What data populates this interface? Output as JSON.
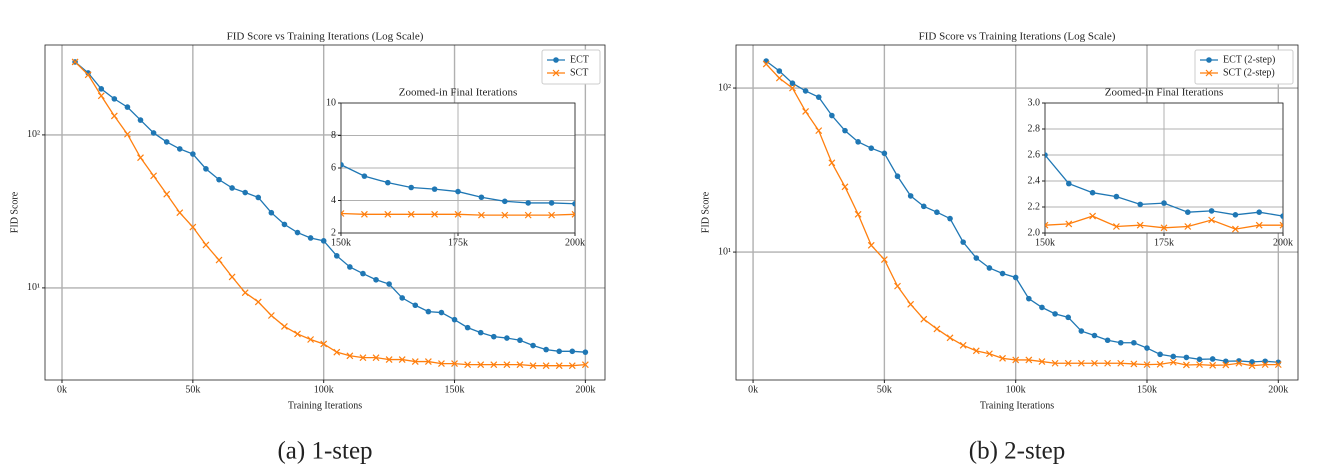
{
  "chart_data": [
    {
      "type": "line",
      "title": "FID Score vs Training Iterations (Log Scale)",
      "xlabel": "Training Iterations",
      "ylabel": "FID Score",
      "caption": "(a) 1-step",
      "x": [
        5000,
        10000,
        15000,
        20000,
        25000,
        30000,
        35000,
        40000,
        45000,
        50000,
        55000,
        60000,
        65000,
        70000,
        75000,
        80000,
        85000,
        90000,
        95000,
        100000,
        105000,
        110000,
        115000,
        120000,
        125000,
        130000,
        135000,
        140000,
        145000,
        150000,
        155000,
        160000,
        165000,
        170000,
        175000,
        180000,
        185000,
        190000,
        195000,
        200000
      ],
      "series": [
        {
          "name": "ECT",
          "color": "#1f77b4",
          "marker": "o",
          "values": [
            300,
            254,
            200,
            172,
            152,
            125,
            103,
            90,
            81,
            75,
            60,
            51,
            45,
            42,
            39,
            31,
            26,
            23,
            21.2,
            20.3,
            16.2,
            13.7,
            12.4,
            11.3,
            10.6,
            8.6,
            7.7,
            7.0,
            6.9,
            6.2,
            5.5,
            5.1,
            4.8,
            4.7,
            4.55,
            4.2,
            3.95,
            3.85,
            3.85,
            3.8
          ]
        },
        {
          "name": "SCT",
          "color": "#ff7f0e",
          "marker": "x",
          "values": [
            300,
            247,
            180,
            133,
            101,
            71,
            54,
            41,
            31,
            25,
            19.1,
            15.2,
            11.8,
            9.3,
            8.1,
            6.6,
            5.6,
            5.0,
            4.6,
            4.3,
            3.8,
            3.6,
            3.5,
            3.5,
            3.4,
            3.4,
            3.3,
            3.3,
            3.2,
            3.2,
            3.15,
            3.15,
            3.15,
            3.15,
            3.15,
            3.1,
            3.1,
            3.1,
            3.1,
            3.15
          ]
        }
      ],
      "xlim": [
        -6500,
        207500
      ],
      "ylim": [
        2.5,
        387
      ],
      "log_y": true,
      "grid": true,
      "legend": "upper right",
      "xticks": [
        {
          "value": 0,
          "label": "0k"
        },
        {
          "value": 50000,
          "label": "50k"
        },
        {
          "value": 100000,
          "label": "100k"
        },
        {
          "value": 150000,
          "label": "150k"
        },
        {
          "value": 200000,
          "label": "200k"
        }
      ],
      "yticks": [
        {
          "value": 10,
          "label": "10¹"
        },
        {
          "value": 100,
          "label": "10²"
        }
      ],
      "inset": {
        "title": "Zoomed-in Final Iterations",
        "x": [
          150000,
          155000,
          160000,
          165000,
          170000,
          175000,
          180000,
          185000,
          190000,
          195000,
          200000
        ],
        "series": [
          {
            "color": "#1f77b4",
            "marker": "o",
            "values": [
              6.2,
              5.5,
              5.1,
              4.8,
              4.7,
              4.55,
              4.2,
              3.95,
              3.85,
              3.85,
              3.8
            ]
          },
          {
            "color": "#ff7f0e",
            "marker": "x",
            "values": [
              3.2,
              3.15,
              3.15,
              3.15,
              3.15,
              3.15,
              3.1,
              3.1,
              3.1,
              3.1,
              3.15
            ]
          }
        ],
        "xlim": [
          150000,
          200000
        ],
        "ylim": [
          2,
          10
        ],
        "grid": true,
        "xticks": [
          {
            "value": 150000,
            "label": "150k"
          },
          {
            "value": 175000,
            "label": "175k"
          },
          {
            "value": 200000,
            "label": "200k"
          }
        ],
        "yticks": [
          2,
          4,
          6,
          8,
          10
        ]
      }
    },
    {
      "type": "line",
      "title": "FID Score vs Training Iterations (Log Scale)",
      "xlabel": "Training Iterations",
      "ylabel": "FID Score",
      "caption": "(b) 2-step",
      "x": [
        5000,
        10000,
        15000,
        20000,
        25000,
        30000,
        35000,
        40000,
        45000,
        50000,
        55000,
        60000,
        65000,
        70000,
        75000,
        80000,
        85000,
        90000,
        95000,
        100000,
        105000,
        110000,
        115000,
        120000,
        125000,
        130000,
        135000,
        140000,
        145000,
        150000,
        155000,
        160000,
        165000,
        170000,
        175000,
        180000,
        185000,
        190000,
        195000,
        200000
      ],
      "series": [
        {
          "name": "ECT (2-step)",
          "color": "#1f77b4",
          "marker": "o",
          "values": [
            146,
            127,
            107,
            96,
            88,
            68,
            55,
            47,
            43,
            40,
            29,
            22,
            19,
            17.5,
            16,
            11.5,
            9.2,
            8.0,
            7.4,
            7.0,
            5.2,
            4.6,
            4.2,
            4.0,
            3.3,
            3.1,
            2.9,
            2.8,
            2.8,
            2.6,
            2.38,
            2.31,
            2.28,
            2.22,
            2.23,
            2.16,
            2.17,
            2.14,
            2.16,
            2.13
          ]
        },
        {
          "name": "SCT (2-step)",
          "color": "#ff7f0e",
          "marker": "x",
          "values": [
            140,
            115,
            100,
            72,
            55,
            35,
            25,
            17,
            11,
            9,
            6.2,
            4.8,
            3.9,
            3.4,
            3.0,
            2.7,
            2.5,
            2.4,
            2.25,
            2.2,
            2.2,
            2.15,
            2.1,
            2.1,
            2.1,
            2.1,
            2.1,
            2.1,
            2.08,
            2.06,
            2.07,
            2.13,
            2.05,
            2.06,
            2.04,
            2.05,
            2.1,
            2.03,
            2.06,
            2.06
          ]
        }
      ],
      "xlim": [
        -6500,
        207500
      ],
      "ylim": [
        1.66,
        183
      ],
      "log_y": true,
      "grid": true,
      "legend": "upper right",
      "xticks": [
        {
          "value": 0,
          "label": "0k"
        },
        {
          "value": 50000,
          "label": "50k"
        },
        {
          "value": 100000,
          "label": "100k"
        },
        {
          "value": 150000,
          "label": "150k"
        },
        {
          "value": 200000,
          "label": "200k"
        }
      ],
      "yticks": [
        {
          "value": 10,
          "label": "10¹"
        },
        {
          "value": 100,
          "label": "10²"
        }
      ],
      "inset": {
        "title": "Zoomed-in Final Iterations",
        "x": [
          150000,
          155000,
          160000,
          165000,
          170000,
          175000,
          180000,
          185000,
          190000,
          195000,
          200000
        ],
        "series": [
          {
            "color": "#1f77b4",
            "marker": "o",
            "values": [
              2.6,
              2.38,
              2.31,
              2.28,
              2.22,
              2.23,
              2.16,
              2.17,
              2.14,
              2.16,
              2.13
            ]
          },
          {
            "color": "#ff7f0e",
            "marker": "x",
            "values": [
              2.06,
              2.07,
              2.13,
              2.05,
              2.06,
              2.04,
              2.05,
              2.1,
              2.03,
              2.06,
              2.06
            ]
          }
        ],
        "xlim": [
          150000,
          200000
        ],
        "ylim": [
          2,
          3
        ],
        "grid": true,
        "xticks": [
          {
            "value": 150000,
            "label": "150k"
          },
          {
            "value": 175000,
            "label": "175k"
          },
          {
            "value": 200000,
            "label": "200k"
          }
        ],
        "yticks": [
          {
            "value": 2,
            "label": "2.0"
          },
          2.2,
          2.4,
          2.6,
          2.8,
          {
            "value": 3,
            "label": "3.0"
          }
        ]
      }
    }
  ]
}
